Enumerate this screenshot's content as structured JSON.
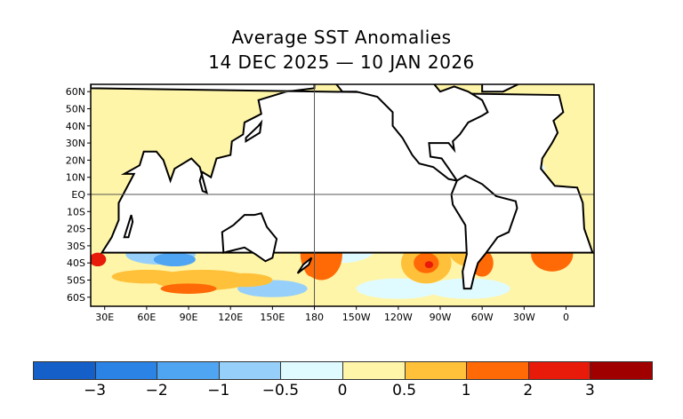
{
  "title": "Average SST Anomalies",
  "subtitle": "14 DEC 2025 — 10 JAN 2026",
  "lat_labels": [
    "60N",
    "50N",
    "40N",
    "30N",
    "20N",
    "10N",
    "EQ",
    "10S",
    "20S",
    "30S",
    "40S",
    "50S",
    "60S"
  ],
  "lon_labels": [
    "30E",
    "60E",
    "90E",
    "120E",
    "150E",
    "180",
    "150W",
    "120W",
    "90W",
    "60W",
    "30W",
    "0"
  ],
  "colorbar": {
    "colors": [
      "#1560c8",
      "#2b83e6",
      "#50a5f2",
      "#96d0fa",
      "#e0fbff",
      "#fff5a8",
      "#ffc13a",
      "#ff6a06",
      "#e81a0a",
      "#a00000"
    ],
    "labels": [
      "−3",
      "−2",
      "−1",
      "−0.5",
      "0",
      "0.5",
      "1",
      "2",
      "3"
    ]
  }
}
